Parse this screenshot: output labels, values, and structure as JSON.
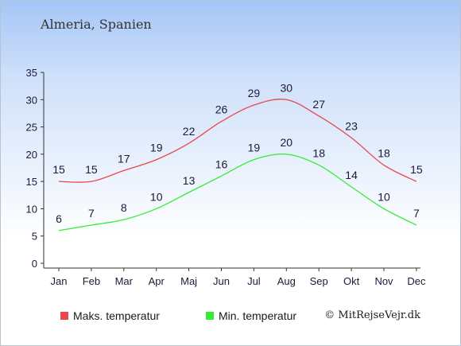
{
  "title": "Almeria, Spanien",
  "copyright": "© MitRejseVejr.dk",
  "colors": {
    "max": "#e8474c",
    "min": "#33ee33",
    "axis": "#333333",
    "label": "#1a1a3a"
  },
  "chart_data": {
    "type": "line",
    "title": "Almeria, Spanien",
    "categories": [
      "Jan",
      "Feb",
      "Mar",
      "Apr",
      "Maj",
      "Jun",
      "Jul",
      "Aug",
      "Sep",
      "Okt",
      "Nov",
      "Dec"
    ],
    "ylim": [
      0,
      35
    ],
    "yticks": [
      0,
      5,
      10,
      15,
      20,
      25,
      30,
      35
    ],
    "grid": false,
    "legend_position": "bottom",
    "series": [
      {
        "name": "Maks. temperatur",
        "color": "#e8474c",
        "values": [
          15,
          15,
          17,
          19,
          22,
          26,
          29,
          30,
          27,
          23,
          18,
          15
        ]
      },
      {
        "name": "Min. temperatur",
        "color": "#33ee33",
        "values": [
          6,
          7,
          8,
          10,
          13,
          16,
          19,
          20,
          18,
          14,
          10,
          7
        ]
      }
    ]
  }
}
